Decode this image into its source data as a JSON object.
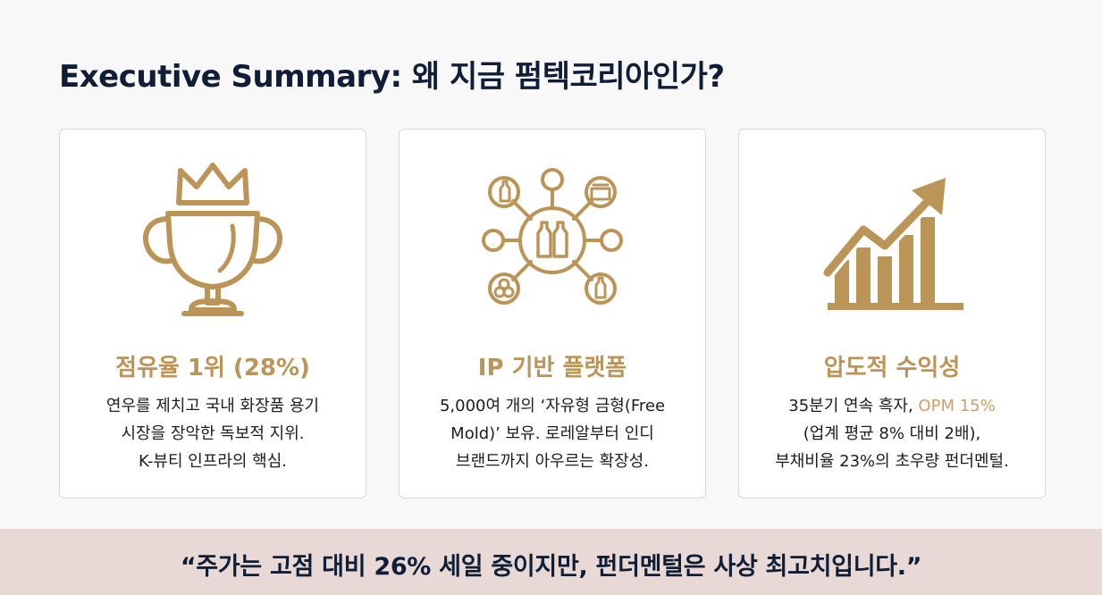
{
  "title": "Executive Summary: 왜 지금 펌텍코리아인가?",
  "colors": {
    "accent": "#bb9457",
    "navy": "#0f1e36",
    "quote_band": "#e8d9d6"
  },
  "cards": [
    {
      "icon": "trophy-crown-icon",
      "title": "점유율 1위 (28%)",
      "lines": [
        "연우를 제치고 국내 화장품 용기",
        "시장을 장악한 독보적 지위.",
        "K-뷰티 인프라의 핵심."
      ]
    },
    {
      "icon": "network-hub-icon",
      "title": "IP 기반 플랫폼",
      "lines": [
        "5,000여 개의 ‘자유형 금형(Free",
        "Mold)’ 보유. 로레알부터 인디",
        "브랜드까지 아우르는 확장성."
      ]
    },
    {
      "icon": "growth-chart-icon",
      "title": "압도적 수익성",
      "line1_prefix": "35분기 연속 흑자, ",
      "line1_accent": "OPM 15%",
      "lines": [
        "(업계 평균 8% 대비 2배),",
        "부채비율 23%의 초우량 펀더멘털."
      ]
    }
  ],
  "quote": "“주가는 고점 대비 26% 세일 중이지만, 펀더멘털은 사상 최고치입니다.”"
}
